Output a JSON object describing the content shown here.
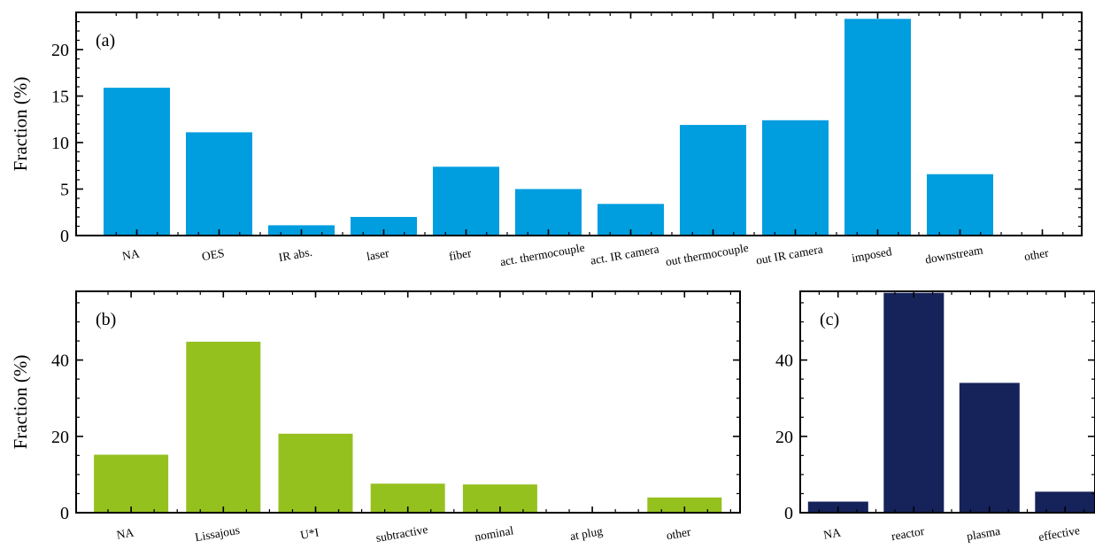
{
  "chart_data": [
    {
      "panel": "(a)",
      "type": "bar",
      "ylabel": "Fraction (%)",
      "ylim": [
        0,
        24
      ],
      "yticks": [
        "0",
        "5",
        "10",
        "15",
        "20"
      ],
      "color": "#009ddf",
      "categories": [
        "NA",
        "OES",
        "IR abs.",
        "laser",
        "fiber",
        "act. thermocouple",
        "act. IR camera",
        "out thermocouple",
        "out IR camera",
        "imposed",
        "downstream",
        "other"
      ],
      "values": [
        15.9,
        11.1,
        1.1,
        2.0,
        7.4,
        5.0,
        3.4,
        11.9,
        12.4,
        23.3,
        6.6,
        0
      ]
    },
    {
      "panel": "(b)",
      "type": "bar",
      "ylabel": "Fraction (%)",
      "ylim": [
        0,
        58
      ],
      "yticks": [
        "0",
        "20",
        "40"
      ],
      "color": "#95c11f",
      "categories": [
        "NA",
        "Lissajous",
        "U*I",
        "subtractive",
        "nominal",
        "at plug",
        "other"
      ],
      "values": [
        15.2,
        44.8,
        20.7,
        7.6,
        7.4,
        0,
        4.0
      ]
    },
    {
      "panel": "(c)",
      "type": "bar",
      "ylabel": "",
      "ylim": [
        0,
        58
      ],
      "yticks": [
        "0",
        "20",
        "40"
      ],
      "color": "#16235a",
      "categories": [
        "NA",
        "reactor",
        "plasma",
        "effective"
      ],
      "values": [
        2.9,
        57.6,
        34.0,
        5.5
      ]
    }
  ]
}
